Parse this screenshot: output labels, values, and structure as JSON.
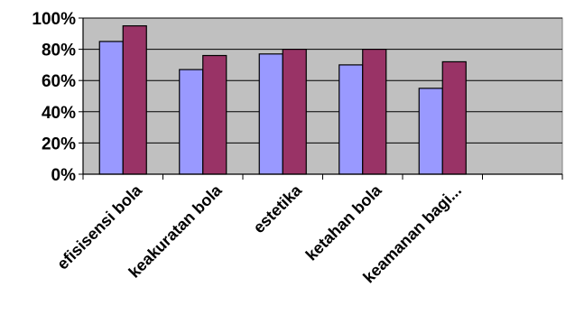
{
  "chart_data": {
    "type": "bar",
    "title": "",
    "xlabel": "",
    "ylabel": "",
    "categories": [
      "efisisensi bola",
      "keakuratan bola",
      "estetika",
      "ketahan bola",
      "keamanan bagi..."
    ],
    "series": [
      {
        "values": [
          85,
          67,
          77,
          70,
          55
        ],
        "color": "#9999ff"
      },
      {
        "values": [
          95,
          76,
          80,
          80,
          72
        ],
        "color": "#993366"
      }
    ],
    "ylim": [
      0,
      100
    ],
    "y_ticks": [
      "0%",
      "20%",
      "40%",
      "60%",
      "80%",
      "100%"
    ],
    "y_tick_values": [
      0,
      20,
      40,
      60,
      80,
      100
    ],
    "grid": true,
    "plot_background": "#c0c0c0",
    "legend": "none"
  }
}
